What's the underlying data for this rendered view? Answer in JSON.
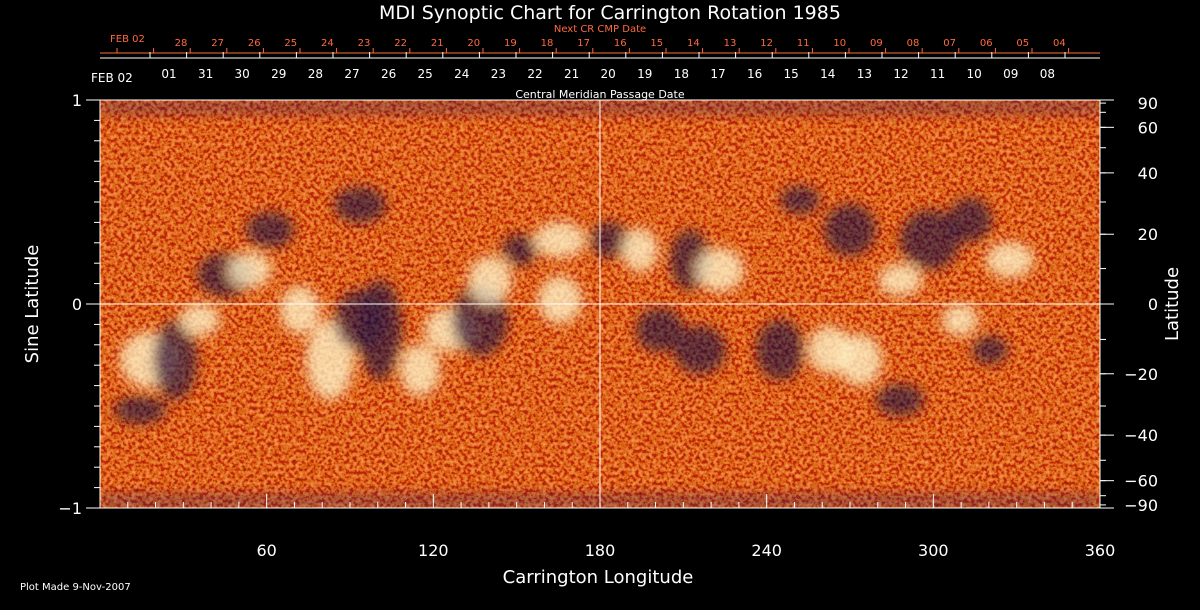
{
  "chart_data": {
    "type": "heatmap",
    "title": "MDI Synoptic Chart for Carrington Rotation 1985",
    "xlabel": "Carrington Longitude",
    "ylabel": "Sine Latitude",
    "y2label": "Latitude",
    "xlim": [
      0,
      360
    ],
    "ylim": [
      -1,
      1
    ],
    "x_ticks": [
      "60",
      "120",
      "180",
      "240",
      "300",
      "360"
    ],
    "y_ticks": [
      "1",
      "0",
      "−1"
    ],
    "y2_ticks": [
      "90",
      "60",
      "40",
      "20",
      "0",
      "−20",
      "−40",
      "−60",
      "−90"
    ],
    "top_axis_title": "Central Meridian Passage Date",
    "top_axis_start": "FEB 02",
    "top_axis_labels": [
      "01",
      "31",
      "30",
      "29",
      "28",
      "27",
      "26",
      "25",
      "24",
      "23",
      "22",
      "21",
      "20",
      "19",
      "18",
      "17",
      "16",
      "15",
      "14",
      "13",
      "12",
      "11",
      "10",
      "09",
      "08"
    ],
    "next_axis_title": "Next CR CMP Date",
    "next_axis_start": "FEB 02",
    "next_axis_labels": [
      "28",
      "27",
      "26",
      "25",
      "24",
      "23",
      "22",
      "21",
      "20",
      "19",
      "18",
      "17",
      "16",
      "15",
      "14",
      "13",
      "12",
      "11",
      "10",
      "09",
      "08",
      "07",
      "06",
      "05",
      "04"
    ],
    "grid": "crosshair at longitude 180 and sine latitude 0",
    "colors": {
      "background": "#e8571f",
      "positive": "#fff3c8",
      "negative": "#1a0f3a",
      "crosshair": "#ffffff",
      "next_axis": "#ff6a3d"
    }
  },
  "footer": {
    "plot_made": "Plot Made  9-Nov-2007"
  }
}
